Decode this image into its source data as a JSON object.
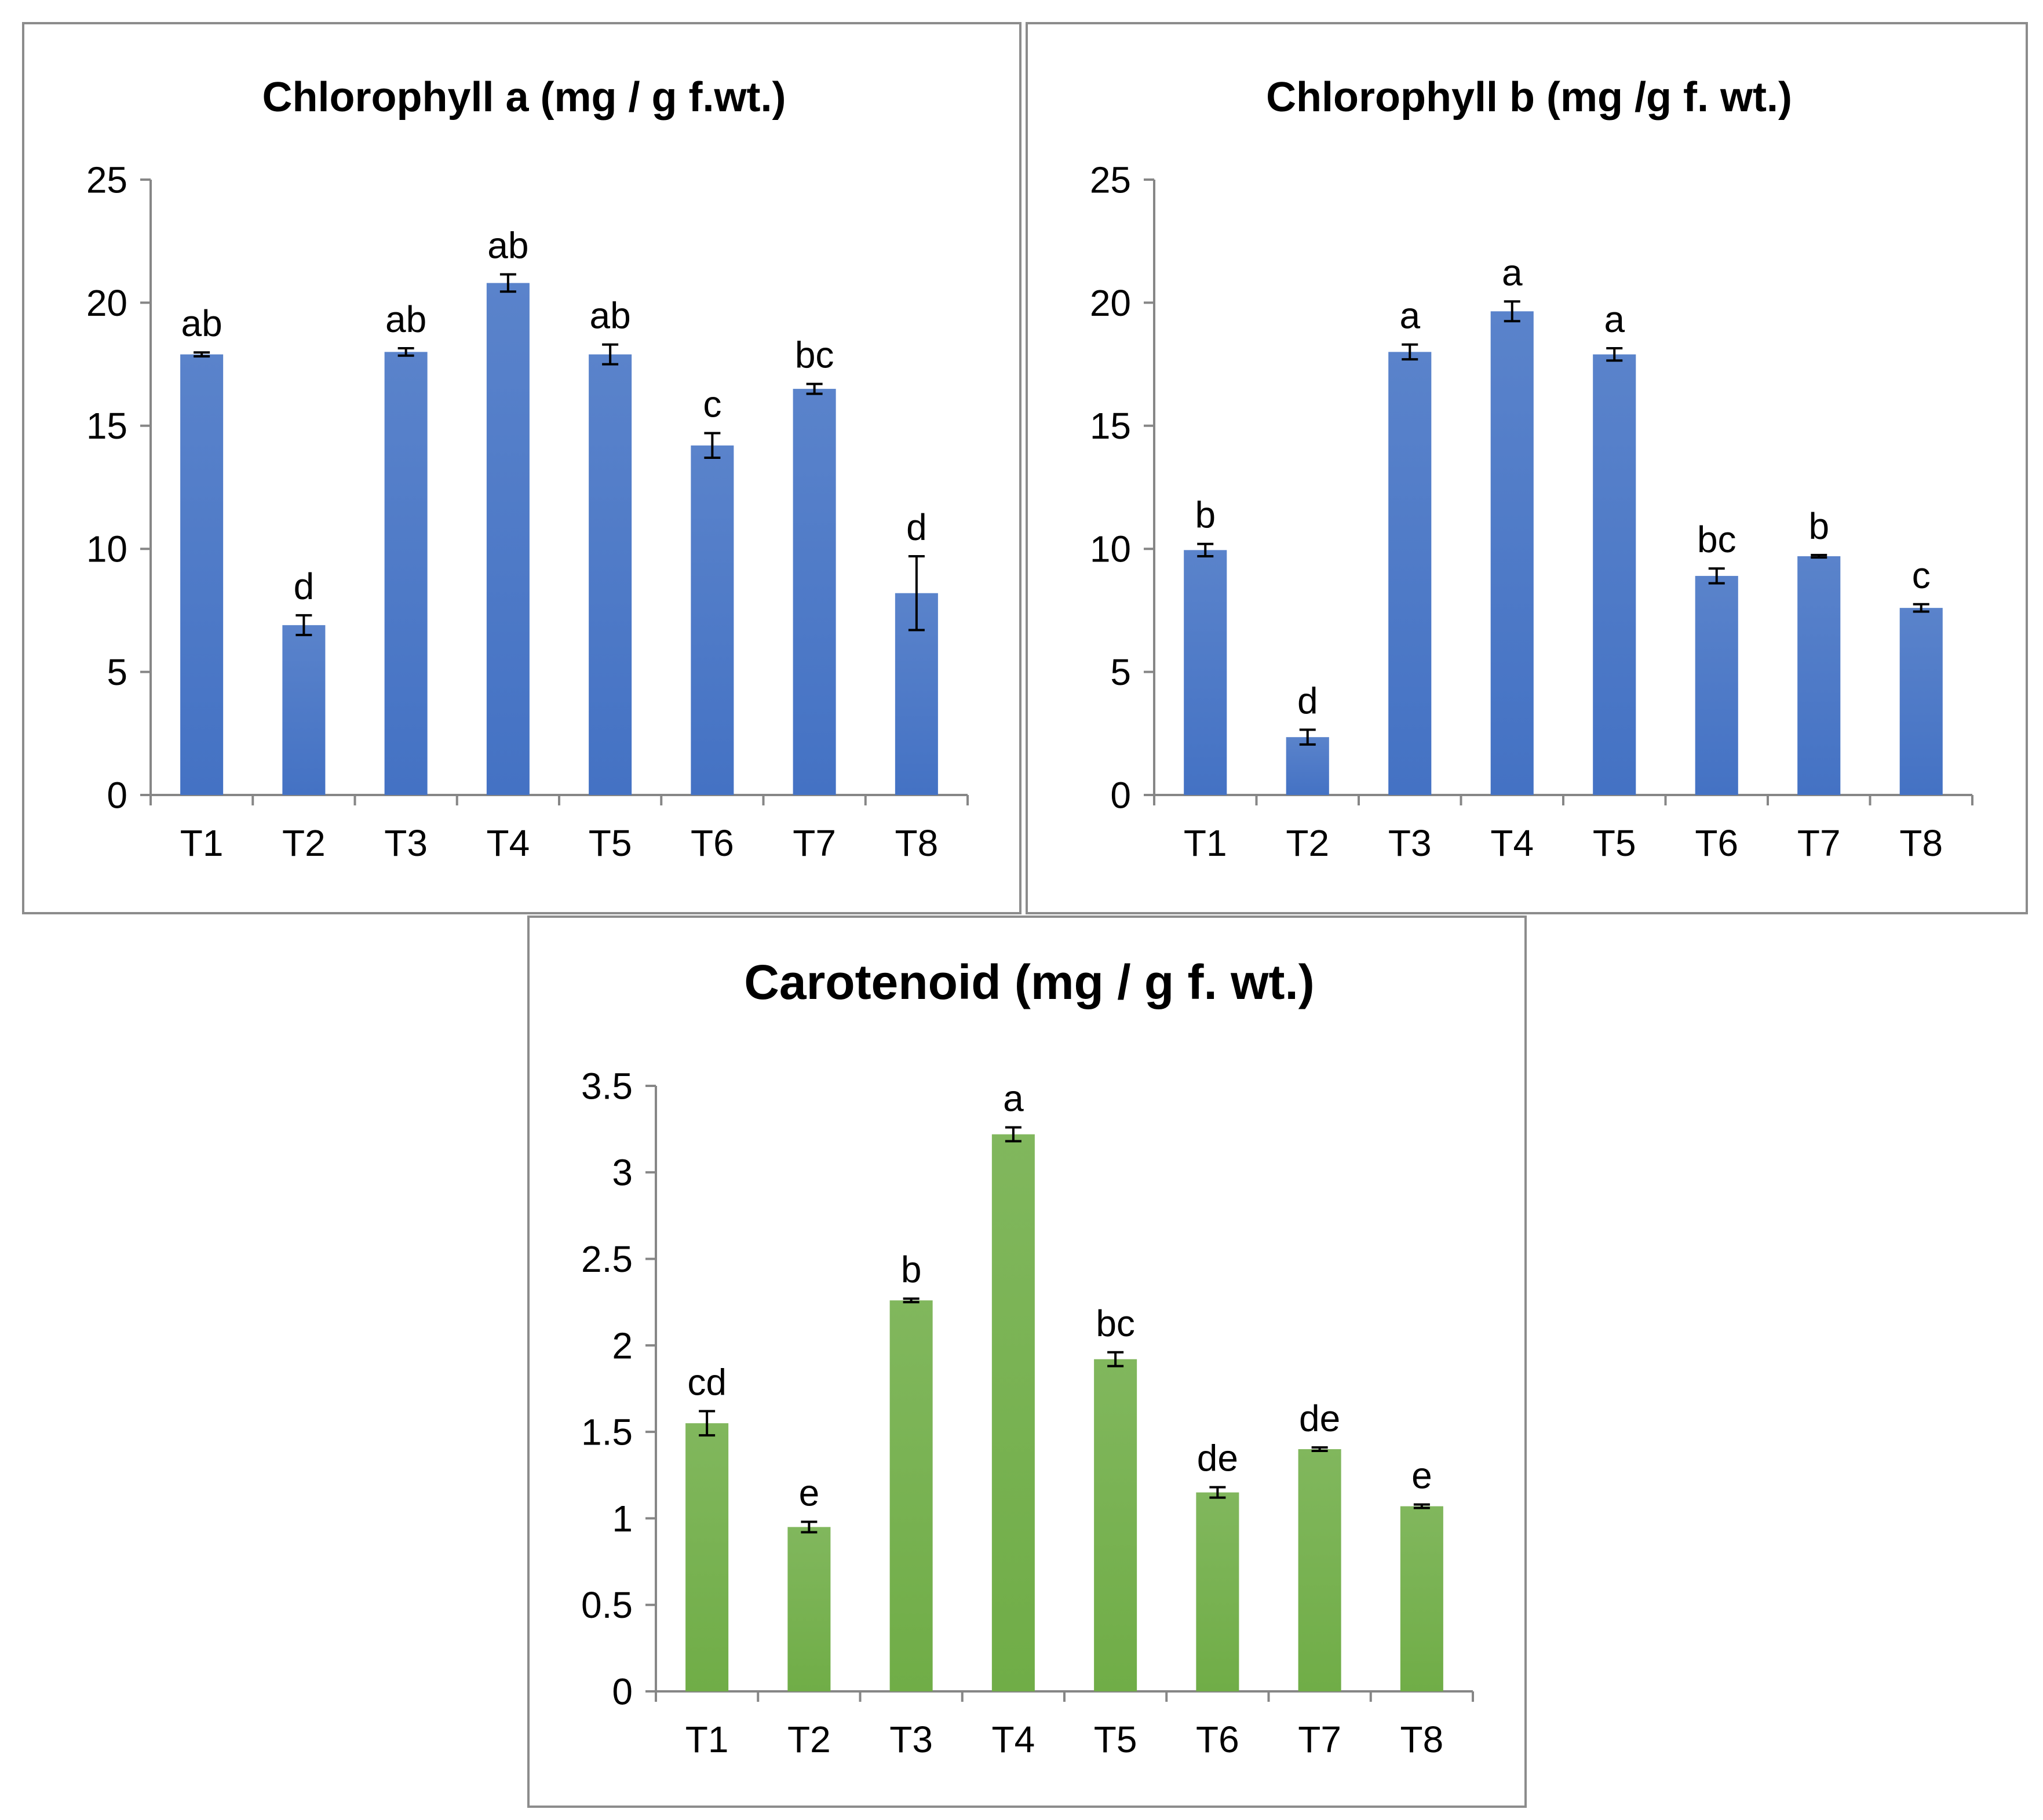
{
  "chart_data": [
    {
      "type": "bar",
      "title": "Chlorophyll a (mg / g f.wt.)",
      "xlabel": "",
      "ylabel": "",
      "categories": [
        "T1",
        "T2",
        "T3",
        "T4",
        "T5",
        "T6",
        "T7",
        "T8"
      ],
      "values": [
        17.9,
        6.9,
        18.0,
        20.8,
        17.9,
        14.2,
        16.5,
        8.2
      ],
      "errors": [
        0.08,
        0.4,
        0.15,
        0.35,
        0.4,
        0.5,
        0.2,
        1.5
      ],
      "significance": [
        "ab",
        "d",
        "ab",
        "ab",
        "ab",
        "c",
        "bc",
        "d"
      ],
      "ylim": [
        0,
        25
      ],
      "yticks": [
        "0",
        "5",
        "10",
        "15",
        "20",
        "25"
      ],
      "tick_values": [
        0,
        5,
        10,
        15,
        20,
        25
      ],
      "bar_color": "#4472c4"
    },
    {
      "type": "bar",
      "title": "Chlorophyll b (mg /g f. wt.)",
      "xlabel": "",
      "ylabel": "",
      "categories": [
        "T1",
        "T2",
        "T3",
        "T4",
        "T5",
        "T6",
        "T7",
        "T8"
      ],
      "values": [
        9.95,
        2.35,
        18.0,
        19.65,
        17.9,
        8.9,
        9.7,
        7.6
      ],
      "errors": [
        0.25,
        0.3,
        0.3,
        0.4,
        0.25,
        0.3,
        0.05,
        0.15
      ],
      "significance": [
        "b",
        "d",
        "a",
        "a",
        "a",
        "bc",
        "b",
        "c"
      ],
      "ylim": [
        0,
        25
      ],
      "yticks": [
        "0",
        "5",
        "10",
        "15",
        "20",
        "25"
      ],
      "tick_values": [
        0,
        5,
        10,
        15,
        20,
        25
      ],
      "bar_color": "#4472c4"
    },
    {
      "type": "bar",
      "title": "Carotenoid (mg / g f. wt.)",
      "xlabel": "",
      "ylabel": "",
      "categories": [
        "T1",
        "T2",
        "T3",
        "T4",
        "T5",
        "T6",
        "T7",
        "T8"
      ],
      "values": [
        1.55,
        0.95,
        2.26,
        3.22,
        1.92,
        1.15,
        1.4,
        1.07
      ],
      "errors": [
        0.07,
        0.03,
        0.01,
        0.04,
        0.04,
        0.03,
        0.01,
        0.01
      ],
      "significance": [
        "cd",
        "e",
        "b",
        "a",
        "bc",
        "de",
        "de",
        "e"
      ],
      "ylim": [
        0,
        3.5
      ],
      "yticks": [
        "0",
        "0.5",
        "1",
        "1.5",
        "2",
        "2.5",
        "3",
        "3.5"
      ],
      "tick_values": [
        0,
        0.5,
        1,
        1.5,
        2,
        2.5,
        3,
        3.5
      ],
      "bar_color": "#70ad47"
    }
  ]
}
